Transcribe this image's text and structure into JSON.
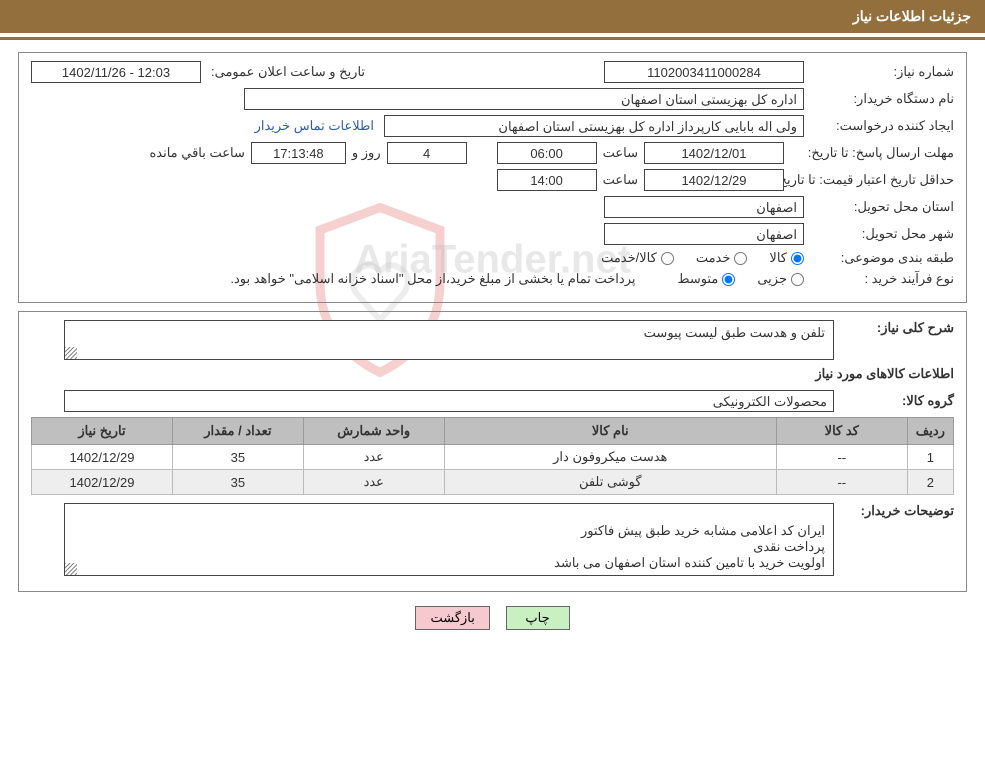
{
  "header": {
    "title": "جزئیات اطلاعات نیاز"
  },
  "info": {
    "need_no_label": "شماره نیاز:",
    "need_no": "1102003411000284",
    "public_time_label": "تاریخ و ساعت اعلان عمومی:",
    "public_time": "1402/11/26 - 12:03",
    "buyer_org_label": "نام دستگاه خریدار:",
    "buyer_org": "اداره کل بهزیستی استان اصفهان",
    "requester_label": "ایجاد کننده درخواست:",
    "requester": "ولی اله بابایی کارپرداز اداره کل بهزیستی استان اصفهان",
    "buyer_contact_link": "اطلاعات تماس خریدار",
    "deadline_label": "مهلت ارسال پاسخ: تا تاریخ:",
    "deadline_date": "1402/12/01",
    "hour_label": "ساعت",
    "deadline_hour": "06:00",
    "days_remaining": "4",
    "days_and_label": "روز و",
    "time_remaining": "17:13:48",
    "time_remaining_suffix": "ساعت باقي مانده",
    "validity_label": "حداقل تاریخ اعتبار قیمت: تا تاریخ:",
    "validity_date": "1402/12/29",
    "validity_hour": "14:00",
    "delivery_province_label": "استان محل تحویل:",
    "delivery_province": "اصفهان",
    "delivery_city_label": "شهر محل تحویل:",
    "delivery_city": "اصفهان",
    "topic_label": "طبقه بندی موضوعی:",
    "topic_options": {
      "goods": "کالا",
      "service": "خدمت",
      "goods_service": "کالا/خدمت"
    },
    "purchase_type_label": "نوع فرآیند خرید :",
    "purchase_options": {
      "minor": "جزیی",
      "medium": "متوسط"
    },
    "purchase_note": "پرداخت تمام یا بخشی از مبلغ خرید،از محل \"اسناد خزانه اسلامی\" خواهد بود."
  },
  "detail": {
    "overall_label": "شرح کلی نیاز:",
    "overall_text": "تلفن و هدست طبق لیست پیوست",
    "items_title": "اطلاعات کالاهای مورد نیاز",
    "group_label": "گروه کالا:",
    "group_value": "محصولات الکترونیکی",
    "headers": {
      "idx": "ردیف",
      "code": "کد کالا",
      "name": "نام کالا",
      "unit": "واحد شمارش",
      "qty": "تعداد / مقدار",
      "date": "تاریخ نیاز"
    },
    "rows": [
      {
        "idx": "1",
        "code": "--",
        "name": "هدست میکروفون دار",
        "unit": "عدد",
        "qty": "35",
        "date": "1402/12/29"
      },
      {
        "idx": "2",
        "code": "--",
        "name": "گوشی تلفن",
        "unit": "عدد",
        "qty": "35",
        "date": "1402/12/29"
      }
    ],
    "buyer_notes_label": "توضیحات خریدار:",
    "buyer_notes": "ایران کد اعلامی مشابه خرید طبق پیش فاکتور\nپرداخت نقدی\nاولویت خرید با تامین کننده استان اصفهان  می باشد"
  },
  "buttons": {
    "print": "چاپ",
    "back": "بازگشت"
  },
  "watermark": {
    "text": "AriaTender.net"
  },
  "colors": {
    "brand": "#926f3d",
    "link": "#2a5db0",
    "th_bg": "#bfbfbf",
    "alt_row": "#eeeeee",
    "btn_print": "#c9f0c0",
    "btn_back": "#f6c9cf"
  }
}
